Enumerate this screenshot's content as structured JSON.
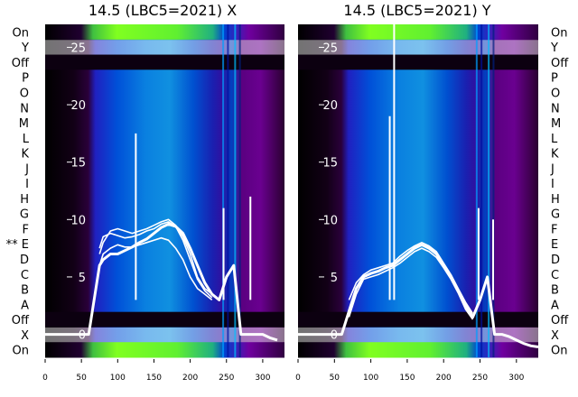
{
  "chart_data": [
    {
      "type": "heatmap",
      "title": "14.5 (LBC5=2021) X",
      "row_labels": [
        "On",
        "Y",
        "Off",
        "P",
        "O",
        "N",
        "M",
        "L",
        "K",
        "J",
        "I",
        "H",
        "G",
        "F",
        "** E",
        "D",
        "C",
        "B",
        "A",
        "Off",
        "X",
        "On"
      ],
      "xlim": [
        0,
        330
      ],
      "x_ticks": [
        0,
        50,
        100,
        150,
        200,
        250,
        300
      ],
      "ylim": [
        -2,
        27
      ],
      "y_ticks": [
        0,
        5,
        10,
        15,
        20,
        25
      ],
      "colorscale": [
        "#000000",
        "#3a0040",
        "#7a0090",
        "#2010c0",
        "#0030e0",
        "#0070d0",
        "#10a0e0",
        "#20c080",
        "#40e030",
        "#80ff20"
      ],
      "series": [
        {
          "x": [
            0,
            60,
            70,
            75,
            80,
            90,
            100,
            110,
            120,
            130,
            140,
            150,
            160,
            170,
            180,
            190,
            200,
            210,
            220,
            230,
            240,
            250,
            260,
            270,
            280,
            290,
            300,
            310,
            320
          ],
          "y": [
            0,
            0,
            4,
            6,
            6.5,
            7,
            7,
            7.3,
            7.6,
            8,
            8.3,
            8.8,
            9.3,
            9.6,
            9.4,
            8.8,
            7.5,
            6,
            4.5,
            3.5,
            3,
            5,
            6,
            0,
            0,
            0,
            0,
            -0.3,
            -0.5
          ]
        },
        {
          "x": [
            75,
            80,
            90,
            100,
            110,
            120,
            130,
            140,
            150,
            160,
            170,
            180,
            190,
            200,
            210,
            220,
            230
          ],
          "y": [
            7,
            8,
            9,
            9.2,
            9,
            8.8,
            9,
            9.2,
            9.5,
            9.8,
            10,
            9.5,
            8.5,
            7,
            5,
            4,
            3.5
          ]
        },
        {
          "x": [
            75,
            80,
            90,
            100,
            110,
            120,
            130,
            140,
            150,
            160,
            170,
            180,
            190,
            200,
            210,
            220,
            230
          ],
          "y": [
            6,
            7,
            7.5,
            7.8,
            7.6,
            7.6,
            7.8,
            8,
            8.2,
            8.4,
            8.2,
            7.5,
            6.5,
            5,
            4,
            3.5,
            3
          ]
        },
        {
          "x": [
            75,
            80,
            90,
            100,
            110,
            120,
            130,
            140,
            150,
            160,
            170,
            180,
            190,
            200,
            210,
            220,
            230
          ],
          "y": [
            7.5,
            8.5,
            8.8,
            8.6,
            8.4,
            8.5,
            8.7,
            9,
            9.2,
            9.6,
            9.8,
            9.4,
            8.2,
            6.5,
            4.8,
            3.8,
            3.2
          ]
        }
      ],
      "spikes": [
        {
          "x": 125,
          "y": 17.5
        },
        {
          "x": 246,
          "y": 11
        },
        {
          "x": 283,
          "y": 12
        }
      ]
    },
    {
      "type": "heatmap",
      "title": "14.5 (LBC5=2021) Y",
      "row_labels": [
        "On",
        "Y",
        "Off",
        "P",
        "O",
        "N",
        "M",
        "L",
        "K",
        "J",
        "I",
        "H",
        "G",
        "F",
        "E",
        "D",
        "C",
        "B",
        "A",
        "Off",
        "X",
        "On"
      ],
      "xlim": [
        0,
        330
      ],
      "x_ticks": [
        0,
        50,
        100,
        150,
        200,
        250,
        300
      ],
      "ylim": [
        -2,
        27
      ],
      "y_ticks": [
        0,
        5,
        10,
        15,
        20,
        25
      ],
      "colorscale": [
        "#000000",
        "#3a0040",
        "#7a0090",
        "#2010c0",
        "#0030e0",
        "#0070d0",
        "#10a0e0",
        "#20c080",
        "#40e030",
        "#80ff20"
      ],
      "series": [
        {
          "x": [
            0,
            60,
            70,
            80,
            90,
            100,
            110,
            120,
            130,
            140,
            150,
            160,
            170,
            180,
            190,
            200,
            210,
            220,
            230,
            235,
            240,
            250,
            260,
            270,
            280,
            290,
            300,
            310,
            320,
            330
          ],
          "y": [
            0,
            0,
            2,
            4,
            5,
            5.3,
            5.5,
            5.8,
            6,
            6.5,
            7,
            7.5,
            7.8,
            7.5,
            7,
            6,
            5,
            3.8,
            2.5,
            2,
            1.5,
            3,
            5,
            0,
            0,
            -0.2,
            -0.5,
            -0.8,
            -1,
            -1.1
          ]
        },
        {
          "x": [
            70,
            80,
            90,
            100,
            110,
            120,
            130,
            140,
            150,
            160,
            170,
            180,
            190,
            200,
            210,
            220,
            230,
            240
          ],
          "y": [
            3,
            4.5,
            5.2,
            5.6,
            5.8,
            6,
            6.2,
            6.8,
            7.3,
            7.7,
            8,
            7.7,
            7.2,
            6.2,
            5.2,
            4,
            2.8,
            1.8
          ]
        },
        {
          "x": [
            70,
            80,
            90,
            100,
            110,
            120,
            130,
            140,
            150,
            160,
            170,
            180,
            190,
            200,
            210,
            220,
            230,
            240
          ],
          "y": [
            1.5,
            3.5,
            4.8,
            5,
            5.2,
            5.5,
            5.8,
            6.2,
            6.7,
            7.2,
            7.5,
            7.2,
            6.7,
            5.8,
            4.8,
            3.6,
            2.2,
            1.3
          ]
        }
      ],
      "spikes": [
        {
          "x": 126,
          "y": 19
        },
        {
          "x": 132,
          "y": 27
        },
        {
          "x": 248,
          "y": 11
        },
        {
          "x": 268,
          "y": 10
        }
      ]
    }
  ]
}
